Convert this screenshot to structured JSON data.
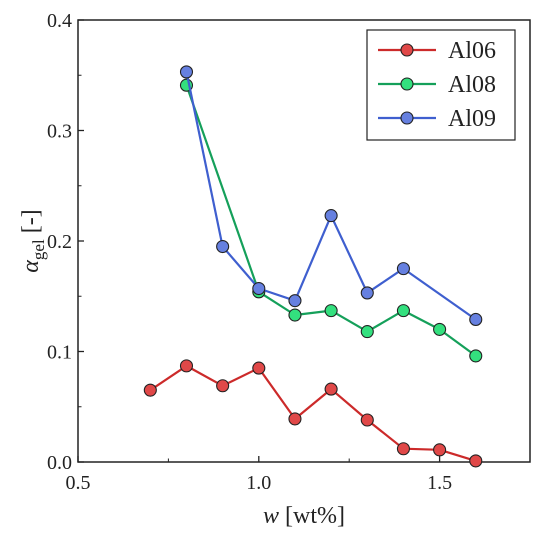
{
  "chart_data": {
    "type": "line",
    "xlabel": {
      "var": "w",
      "unit": " [wt%]"
    },
    "ylabel": {
      "var": "α",
      "sub": "gel",
      "unit": " [-]"
    },
    "xlim": [
      0.5,
      1.75
    ],
    "ylim": [
      0.0,
      0.4
    ],
    "xticks": [
      0.5,
      1.0,
      1.5
    ],
    "xtick_labels": [
      "0.5",
      "1.0",
      "1.5"
    ],
    "yticks": [
      0.0,
      0.1,
      0.2,
      0.3,
      0.4
    ],
    "ytick_labels": [
      "0.0",
      "0.1",
      "0.2",
      "0.3",
      "0.4"
    ],
    "legend_position": "top-right",
    "grid": false,
    "series": [
      {
        "name": "Al06",
        "line_color": "#cc2a2a",
        "marker_color": "#e04848",
        "x": [
          0.7,
          0.8,
          0.9,
          1.0,
          1.1,
          1.2,
          1.3,
          1.4,
          1.5,
          1.6
        ],
        "y": [
          0.065,
          0.087,
          0.069,
          0.085,
          0.039,
          0.066,
          0.038,
          0.012,
          0.011,
          0.001
        ]
      },
      {
        "name": "Al08",
        "line_color": "#15a05a",
        "marker_color": "#33e07e",
        "x": [
          0.8,
          1.0,
          1.1,
          1.2,
          1.3,
          1.4,
          1.5,
          1.6
        ],
        "y": [
          0.341,
          0.154,
          0.133,
          0.137,
          0.118,
          0.137,
          0.12,
          0.096
        ]
      },
      {
        "name": "Al09",
        "line_color": "#3f5fcf",
        "marker_color": "#6680e0",
        "x": [
          0.8,
          0.9,
          1.0,
          1.1,
          1.2,
          1.3,
          1.4,
          1.6
        ],
        "y": [
          0.353,
          0.195,
          0.157,
          0.146,
          0.223,
          0.153,
          0.175,
          0.129
        ]
      }
    ]
  }
}
